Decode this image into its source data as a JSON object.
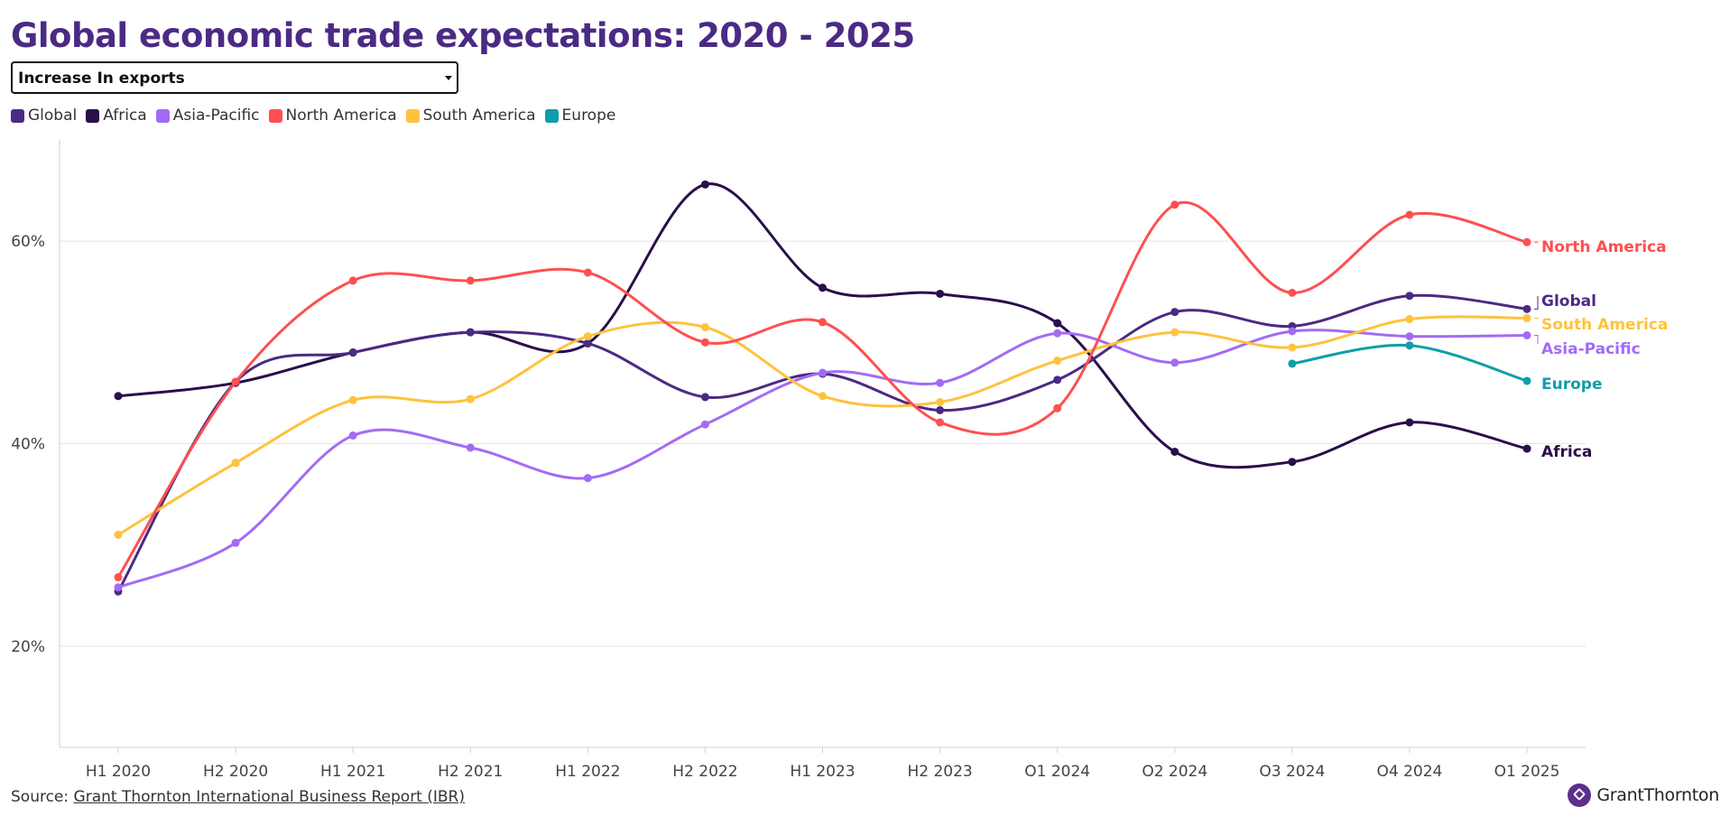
{
  "title": "Global economic trade expectations: 2020 - 2025",
  "dropdown": {
    "selected": "Increase In exports"
  },
  "source": {
    "prefix": "Source:",
    "link": "Grant Thornton International Business Report (IBR)"
  },
  "brand": {
    "name": "GrantThornton"
  },
  "legend": [
    {
      "name": "Global",
      "color": "#4b2a84"
    },
    {
      "name": "Africa",
      "color": "#2a0f4b"
    },
    {
      "name": "Asia-Pacific",
      "color": "#a36bf5"
    },
    {
      "name": "North America",
      "color": "#ff4f4f"
    },
    {
      "name": "South America",
      "color": "#ffc23d"
    },
    {
      "name": "Europe",
      "color": "#119ea8"
    }
  ],
  "chart_data": {
    "type": "line",
    "categories": [
      "H1 2020",
      "H2 2020",
      "H1 2021",
      "H2 2021",
      "H1 2022",
      "H2 2022",
      "H1 2023",
      "H2 2023",
      "Q1 2024",
      "Q2 2024",
      "Q3 2024",
      "Q4 2024",
      "Q1 2025"
    ],
    "yticks": [
      "20%",
      "40%",
      "60%"
    ],
    "ylim": [
      10,
      70
    ],
    "grid": true,
    "series": [
      {
        "name": "Global",
        "label": "Global",
        "color": "#4b2a84",
        "values": [
          25.4,
          46.1,
          49.0,
          51.0,
          49.9,
          44.6,
          46.9,
          43.3,
          46.3,
          53.0,
          51.6,
          54.6,
          53.3
        ]
      },
      {
        "name": "Africa",
        "label": "Africa",
        "color": "#2a0f4b",
        "values": [
          44.7,
          46.0,
          49.0,
          51.0,
          49.9,
          65.6,
          55.4,
          54.8,
          51.9,
          39.2,
          38.2,
          42.1,
          39.5
        ]
      },
      {
        "name": "Asia-Pacific",
        "label": "Asia-Pacific",
        "color": "#a36bf5",
        "values": [
          25.8,
          30.2,
          40.8,
          39.6,
          36.6,
          41.9,
          47.0,
          46.0,
          50.9,
          48.0,
          51.1,
          50.6,
          50.7
        ]
      },
      {
        "name": "North America",
        "label": "North America",
        "color": "#ff4f4f",
        "values": [
          26.8,
          46.1,
          56.1,
          56.1,
          56.9,
          50.0,
          52.0,
          42.1,
          43.5,
          63.6,
          54.9,
          62.6,
          59.9
        ]
      },
      {
        "name": "South America",
        "label": "South America",
        "color": "#ffc23d",
        "values": [
          31.0,
          38.1,
          44.3,
          44.4,
          50.6,
          51.5,
          44.7,
          44.1,
          48.2,
          51.0,
          49.5,
          52.3,
          52.4
        ]
      },
      {
        "name": "Europe",
        "label": "Europe",
        "color": "#119ea8",
        "values": [
          null,
          null,
          null,
          null,
          null,
          null,
          null,
          null,
          null,
          null,
          47.9,
          49.7,
          46.2
        ]
      }
    ]
  }
}
